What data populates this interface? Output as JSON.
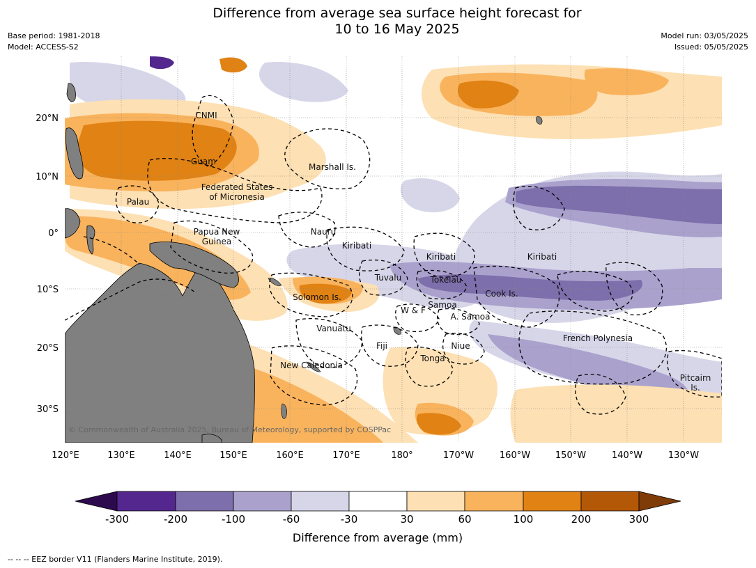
{
  "title_line1": "Difference from average sea surface height forecast for",
  "title_line2": "10 to 16 May 2025",
  "meta_left": [
    "Base period: 1981-2018",
    "Model: ACCESS-S2"
  ],
  "meta_right": [
    "Model run: 03/05/2025",
    "Issued: 05/05/2025"
  ],
  "lon_ticks": [
    "120°E",
    "130°E",
    "140°E",
    "150°E",
    "160°E",
    "170°E",
    "180°",
    "170°W",
    "160°W",
    "150°W",
    "140°W",
    "130°W"
  ],
  "lat_ticks": [
    "20°N",
    "10°N",
    "0°",
    "10°S",
    "20°S",
    "30°S"
  ],
  "place_labels": [
    "CNMI",
    "Guam",
    "Marshall Is.",
    "Federated States",
    "of Micronesia",
    "Palau",
    "Papua New",
    "Guinea",
    "Nauru",
    "Kiribati",
    "Kiribati",
    "Kiribati",
    "Tuvalu",
    "Tokelau",
    "Solomon Is.",
    "Samoa",
    "W & F",
    "A. Samoa",
    "Cook Is.",
    "Vanuatu",
    "Fiji",
    "Niue",
    "Tonga",
    "French Polynesia",
    "New Caledonia",
    "Pitcairn",
    "Is."
  ],
  "credit": "© Commonwealth of Australia 2025, Bureau of Meteorology, supported by COSPPac",
  "colorbar": {
    "title": "Difference from average (mm)",
    "labels": [
      "-300",
      "-200",
      "-100",
      "-60",
      "-30",
      "30",
      "60",
      "100",
      "200",
      "300"
    ],
    "colors": [
      "#2d0a4e",
      "#54278f",
      "#7d6fab",
      "#aaa2cd",
      "#d7d6e9",
      "#ffffff",
      "#fde0b3",
      "#f9b35d",
      "#e08214",
      "#b35806",
      "#7f3b08"
    ]
  },
  "footer": "--  --  -- EEZ border V11 (Flanders Marine Institute, 2019).",
  "colors": {
    "land": "#808080",
    "ocean": "#ffffff"
  }
}
